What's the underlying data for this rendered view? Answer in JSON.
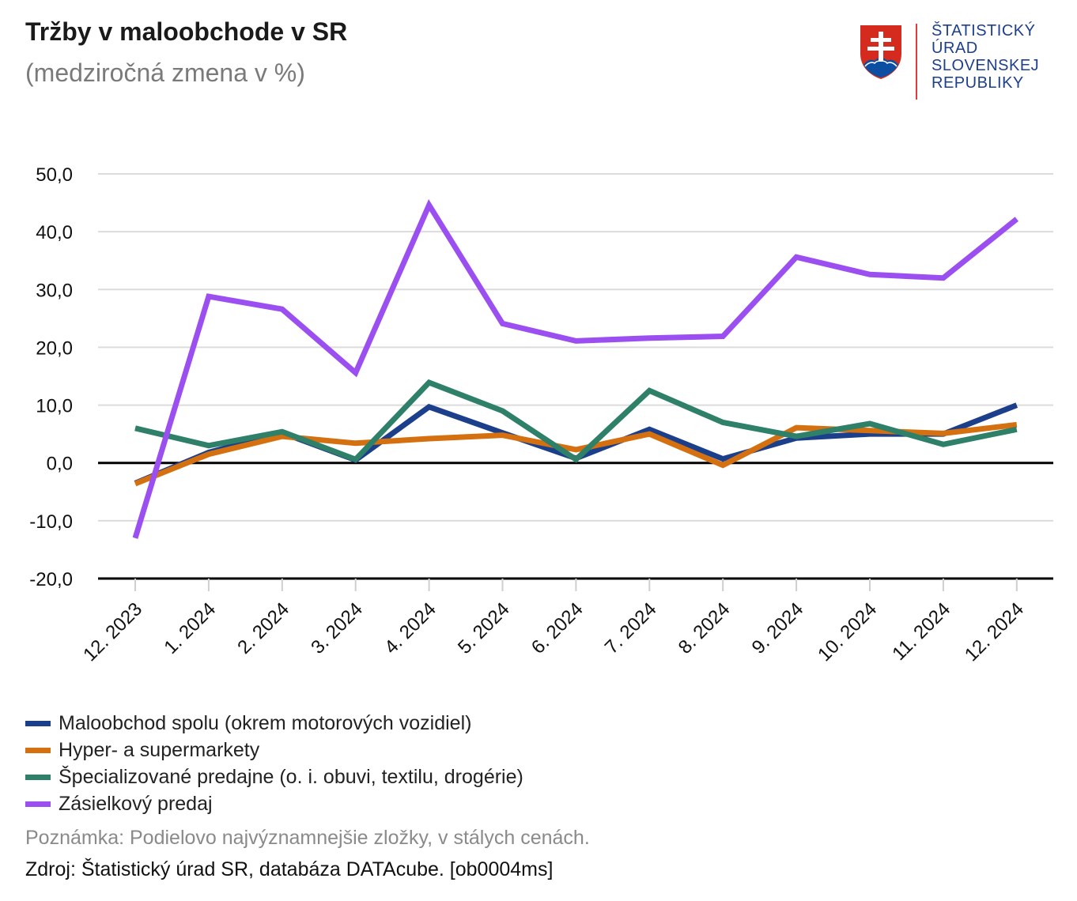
{
  "header": {
    "title": "Tržby v maloobchode v SR",
    "subtitle": "(medziročná zmena v %)"
  },
  "logo": {
    "line1": "ŠTATISTICKÝ",
    "line2": "ÚRAD",
    "line3": "SLOVENSKEJ",
    "line4": "REPUBLIKY"
  },
  "footer": {
    "note": "Poznámka: Podielovo najvýznamnejšie zložky, v stálych cenách.",
    "source": "Zdroj: Štatistický úrad SR, databáza DATAcube. [ob0004ms]"
  },
  "chart_data": {
    "type": "line",
    "title": "Tržby v maloobchode v SR",
    "subtitle": "(medziročná zmena v %)",
    "categories": [
      "12. 2023",
      "1. 2024",
      "2. 2024",
      "3. 2024",
      "4. 2024",
      "5. 2024",
      "6. 2024",
      "7. 2024",
      "8. 2024",
      "9. 2024",
      "10. 2024",
      "11. 2024",
      "12. 2024"
    ],
    "ylim": [
      -20,
      50
    ],
    "yticks": [
      -20,
      -10,
      0,
      10,
      20,
      30,
      40,
      50
    ],
    "ytick_labels": [
      "-20,0",
      "-10,0",
      "0,0",
      "10,0",
      "20,0",
      "30,0",
      "40,0",
      "50,0"
    ],
    "grid": true,
    "legend_position": "bottom",
    "series": [
      {
        "name": "Maloobchod spolu (okrem motorových vozidiel)",
        "color": "#1b3f8b",
        "values": [
          -3.5,
          1.8,
          5.2,
          0.5,
          9.7,
          5.2,
          0.8,
          5.8,
          0.7,
          4.3,
          5.0,
          5.0,
          10.0
        ]
      },
      {
        "name": "Hyper- a supermarkety",
        "color": "#d4700f",
        "values": [
          -3.6,
          1.5,
          4.6,
          3.4,
          4.2,
          4.8,
          2.3,
          5.0,
          -0.4,
          6.1,
          5.6,
          5.1,
          6.6
        ]
      },
      {
        "name": "Špecializované predajne (o. i. obuvi, textilu, drogérie)",
        "color": "#2e8069",
        "values": [
          6.0,
          3.0,
          5.4,
          0.6,
          13.9,
          9.0,
          0.6,
          12.5,
          7.0,
          4.6,
          6.8,
          3.2,
          5.8
        ]
      },
      {
        "name": "Zásielkový predaj",
        "color": "#9b4ff0",
        "values": [
          -13.0,
          28.8,
          26.6,
          15.6,
          44.6,
          24.1,
          21.1,
          21.6,
          21.9,
          35.6,
          32.6,
          32.0,
          42.2
        ]
      }
    ]
  }
}
